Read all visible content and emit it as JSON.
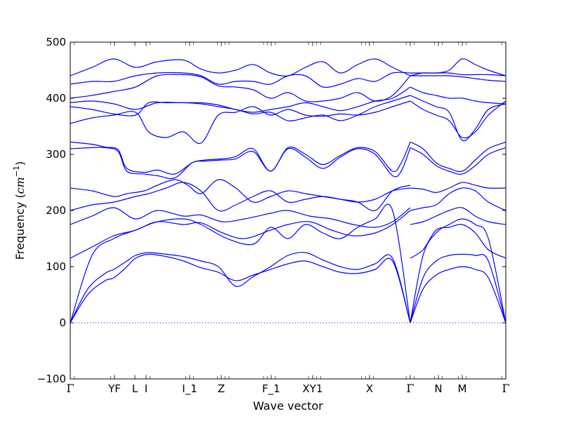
{
  "chart_data": {
    "type": "line",
    "title": "",
    "xlabel": "Wave vector",
    "ylabel": "Frequency (cm⁻¹)",
    "ylabel_parts": {
      "prefix": "Frequency (",
      "unit": "cm",
      "exponent": "−1",
      "suffix": ")"
    },
    "ylim": [
      -100,
      500
    ],
    "yticks": [
      -100,
      0,
      100,
      200,
      300,
      400,
      500
    ],
    "grid": false,
    "zero_line": true,
    "band_color": "#0000ff",
    "zero_line_color": "#0000ff",
    "xlim": [
      0,
      1
    ],
    "x_labels": [
      {
        "label": "Γ",
        "x": 0.0,
        "serif": true
      },
      {
        "label": "YF",
        "x": 0.1016,
        "serif": false
      },
      {
        "label": "L",
        "x": 0.1484,
        "serif": false
      },
      {
        "label": "I",
        "x": 0.1742,
        "serif": false
      },
      {
        "label": "I_1",
        "x": 0.2742,
        "serif": false
      },
      {
        "label": "Z",
        "x": 0.3468,
        "serif": false
      },
      {
        "label": "F_1",
        "x": 0.4613,
        "serif": false
      },
      {
        "label": "XY1",
        "x": 0.5565,
        "serif": false
      },
      {
        "label": "X",
        "x": 0.6871,
        "serif": false
      },
      {
        "label": "Γ",
        "x": 0.7806,
        "serif": true
      },
      {
        "label": "N",
        "x": 0.8452,
        "serif": false
      },
      {
        "label": "M",
        "x": 0.9,
        "serif": false
      },
      {
        "label": "Γ",
        "x": 1.0,
        "serif": true
      }
    ],
    "series": [
      {
        "x": [
          0,
          0.04,
          0.08,
          0.1,
          0.13,
          0.15,
          0.18,
          0.22,
          0.26,
          0.3,
          0.34,
          0.38,
          0.42,
          0.46,
          0.5,
          0.54,
          0.58,
          0.62,
          0.66,
          0.7,
          0.74,
          0.7806
        ],
        "values": [
          0,
          50,
          75,
          80,
          100,
          115,
          122,
          118,
          110,
          98,
          90,
          75,
          85,
          95,
          105,
          110,
          100,
          90,
          88,
          95,
          110,
          0
        ]
      },
      {
        "x": [
          0,
          0.04,
          0.08,
          0.1,
          0.13,
          0.15,
          0.18,
          0.22,
          0.26,
          0.3,
          0.34,
          0.38,
          0.42,
          0.46,
          0.5,
          0.54,
          0.58,
          0.62,
          0.66,
          0.7,
          0.74,
          0.7806
        ],
        "values": [
          0,
          60,
          88,
          95,
          110,
          120,
          125,
          122,
          118,
          110,
          100,
          65,
          82,
          100,
          120,
          125,
          112,
          100,
          95,
          105,
          115,
          0
        ]
      },
      {
        "x": [
          0,
          0.05,
          0.1,
          0.15,
          0.2,
          0.26,
          0.3,
          0.36,
          0.42,
          0.46,
          0.5,
          0.54,
          0.58,
          0.62,
          0.66,
          0.7,
          0.74,
          0.7806
        ],
        "values": [
          0,
          120,
          150,
          165,
          180,
          185,
          175,
          150,
          140,
          170,
          150,
          175,
          160,
          150,
          170,
          185,
          200,
          0
        ]
      },
      {
        "x": [
          0,
          0.05,
          0.1,
          0.15,
          0.2,
          0.26,
          0.3,
          0.35,
          0.4,
          0.46,
          0.5,
          0.55,
          0.6,
          0.65,
          0.7,
          0.74,
          0.7806
        ],
        "values": [
          115,
          135,
          155,
          165,
          180,
          175,
          178,
          160,
          150,
          165,
          175,
          180,
          165,
          155,
          160,
          175,
          200
        ]
      },
      {
        "x": [
          0,
          0.05,
          0.1,
          0.15,
          0.2,
          0.26,
          0.3,
          0.35,
          0.4,
          0.46,
          0.5,
          0.55,
          0.6,
          0.65,
          0.7,
          0.74,
          0.7806
        ],
        "values": [
          175,
          190,
          205,
          185,
          200,
          190,
          192,
          180,
          185,
          195,
          200,
          190,
          185,
          175,
          170,
          180,
          205
        ]
      },
      {
        "x": [
          0,
          0.05,
          0.1,
          0.15,
          0.18,
          0.22,
          0.26,
          0.3,
          0.34,
          0.38,
          0.42,
          0.46,
          0.5,
          0.54,
          0.58,
          0.62,
          0.66,
          0.7,
          0.74,
          0.7806
        ],
        "values": [
          200,
          210,
          215,
          225,
          230,
          240,
          250,
          235,
          200,
          210,
          225,
          235,
          215,
          220,
          225,
          220,
          215,
          220,
          235,
          240
        ]
      },
      {
        "x": [
          0,
          0.05,
          0.1,
          0.13,
          0.17,
          0.2,
          0.24,
          0.27,
          0.3,
          0.34,
          0.38,
          0.42,
          0.46,
          0.5,
          0.54,
          0.58,
          0.62,
          0.66,
          0.7,
          0.74,
          0.7806
        ],
        "values": [
          240,
          235,
          225,
          230,
          235,
          245,
          255,
          245,
          230,
          255,
          240,
          215,
          225,
          235,
          230,
          225,
          220,
          215,
          200,
          235,
          245
        ]
      },
      {
        "x": [
          0,
          0.05,
          0.08,
          0.11,
          0.13,
          0.17,
          0.2,
          0.24,
          0.28,
          0.31,
          0.35,
          0.38,
          0.42,
          0.46,
          0.5,
          0.54,
          0.58,
          0.62,
          0.66,
          0.7,
          0.74,
          0.76,
          0.7806
        ],
        "values": [
          310,
          312,
          312,
          305,
          270,
          265,
          262,
          258,
          285,
          288,
          290,
          292,
          305,
          270,
          310,
          295,
          275,
          295,
          310,
          300,
          262,
          270,
          312
        ]
      },
      {
        "x": [
          0,
          0.05,
          0.08,
          0.11,
          0.13,
          0.17,
          0.2,
          0.24,
          0.28,
          0.31,
          0.35,
          0.38,
          0.42,
          0.46,
          0.5,
          0.54,
          0.58,
          0.62,
          0.66,
          0.7,
          0.74,
          0.76,
          0.7806
        ],
        "values": [
          322,
          318,
          313,
          308,
          275,
          268,
          272,
          265,
          285,
          290,
          292,
          296,
          310,
          270,
          312,
          300,
          282,
          298,
          312,
          305,
          270,
          285,
          322
        ]
      },
      {
        "x": [
          0,
          0.05,
          0.1,
          0.15,
          0.18,
          0.22,
          0.26,
          0.3,
          0.34,
          0.38,
          0.42,
          0.46,
          0.5,
          0.54,
          0.58,
          0.62,
          0.66,
          0.7,
          0.74,
          0.7806
        ],
        "values": [
          355,
          365,
          370,
          375,
          340,
          330,
          340,
          320,
          370,
          375,
          385,
          370,
          380,
          370,
          368,
          372,
          370,
          375,
          385,
          395
        ]
      },
      {
        "x": [
          0,
          0.05,
          0.1,
          0.15,
          0.18,
          0.22,
          0.26,
          0.3,
          0.34,
          0.38,
          0.42,
          0.46,
          0.5,
          0.54,
          0.58,
          0.62,
          0.66,
          0.7,
          0.74,
          0.7806
        ],
        "values": [
          385,
          380,
          372,
          370,
          392,
          392,
          392,
          390,
          385,
          380,
          372,
          375,
          360,
          365,
          370,
          360,
          370,
          385,
          395,
          405
        ]
      },
      {
        "x": [
          0,
          0.05,
          0.1,
          0.15,
          0.2,
          0.26,
          0.3,
          0.34,
          0.38,
          0.42,
          0.46,
          0.5,
          0.54,
          0.58,
          0.62,
          0.66,
          0.7,
          0.74,
          0.7806
        ],
        "values": [
          392,
          395,
          390,
          380,
          392,
          392,
          392,
          388,
          380,
          375,
          380,
          385,
          392,
          385,
          378,
          385,
          395,
          400,
          420
        ]
      },
      {
        "x": [
          0,
          0.05,
          0.1,
          0.15,
          0.2,
          0.26,
          0.3,
          0.34,
          0.38,
          0.42,
          0.46,
          0.5,
          0.54,
          0.58,
          0.62,
          0.66,
          0.7,
          0.74,
          0.7806
        ],
        "values": [
          400,
          405,
          412,
          420,
          440,
          442,
          438,
          422,
          420,
          415,
          400,
          410,
          395,
          395,
          400,
          410,
          395,
          405,
          440
        ]
      },
      {
        "x": [
          0,
          0.05,
          0.1,
          0.15,
          0.2,
          0.26,
          0.3,
          0.34,
          0.38,
          0.42,
          0.46,
          0.5,
          0.54,
          0.58,
          0.62,
          0.66,
          0.7,
          0.74,
          0.7806
        ],
        "values": [
          425,
          430,
          430,
          440,
          445,
          445,
          440,
          425,
          430,
          430,
          425,
          440,
          440,
          420,
          425,
          435,
          430,
          445,
          445
        ]
      },
      {
        "x": [
          0,
          0.05,
          0.1,
          0.15,
          0.2,
          0.26,
          0.3,
          0.34,
          0.38,
          0.42,
          0.46,
          0.5,
          0.54,
          0.58,
          0.62,
          0.66,
          0.7,
          0.74,
          0.7806
        ],
        "values": [
          440,
          455,
          470,
          455,
          465,
          468,
          452,
          445,
          450,
          460,
          445,
          440,
          455,
          465,
          445,
          460,
          470,
          455,
          440
        ]
      },
      {
        "x": [
          0.7806,
          0.81,
          0.84,
          0.87,
          0.9,
          0.93,
          0.96,
          1.0
        ],
        "values": [
          0,
          60,
          85,
          95,
          100,
          95,
          80,
          0
        ]
      },
      {
        "x": [
          0.7806,
          0.81,
          0.84,
          0.87,
          0.9,
          0.93,
          0.96,
          1.0
        ],
        "values": [
          0,
          80,
          110,
          120,
          122,
          120,
          110,
          0
        ]
      },
      {
        "x": [
          0.7806,
          0.81,
          0.84,
          0.87,
          0.9,
          0.93,
          0.96,
          1.0
        ],
        "values": [
          0,
          120,
          160,
          175,
          185,
          175,
          150,
          0
        ]
      },
      {
        "x": [
          0.7806,
          0.81,
          0.84,
          0.87,
          0.9,
          0.93,
          0.96,
          1.0
        ],
        "values": [
          115,
          130,
          165,
          170,
          175,
          160,
          130,
          115
        ]
      },
      {
        "x": [
          0.7806,
          0.81,
          0.84,
          0.87,
          0.9,
          0.93,
          0.96,
          1.0
        ],
        "values": [
          175,
          180,
          190,
          200,
          205,
          190,
          180,
          175
        ]
      },
      {
        "x": [
          0.7806,
          0.81,
          0.84,
          0.87,
          0.9,
          0.93,
          0.96,
          1.0
        ],
        "values": [
          200,
          205,
          210,
          230,
          240,
          235,
          215,
          200
        ]
      },
      {
        "x": [
          0.7806,
          0.81,
          0.84,
          0.87,
          0.9,
          0.93,
          0.96,
          1.0
        ],
        "values": [
          240,
          238,
          232,
          240,
          250,
          245,
          240,
          240
        ]
      },
      {
        "x": [
          0.7806,
          0.81,
          0.84,
          0.87,
          0.9,
          0.93,
          0.96,
          1.0
        ],
        "values": [
          312,
          300,
          280,
          270,
          265,
          280,
          300,
          312
        ]
      },
      {
        "x": [
          0.7806,
          0.81,
          0.84,
          0.87,
          0.9,
          0.93,
          0.96,
          1.0
        ],
        "values": [
          322,
          310,
          285,
          275,
          270,
          290,
          310,
          322
        ]
      },
      {
        "x": [
          0.7806,
          0.81,
          0.84,
          0.87,
          0.9,
          0.93,
          0.96,
          1.0
        ],
        "values": [
          395,
          380,
          370,
          360,
          330,
          340,
          370,
          395
        ]
      },
      {
        "x": [
          0.7806,
          0.81,
          0.84,
          0.87,
          0.9,
          0.93,
          0.96,
          1.0
        ],
        "values": [
          405,
          395,
          385,
          375,
          325,
          345,
          380,
          390
        ]
      },
      {
        "x": [
          0.7806,
          0.81,
          0.84,
          0.87,
          0.9,
          0.93,
          0.96,
          1.0
        ],
        "values": [
          420,
          410,
          405,
          400,
          400,
          395,
          392,
          390
        ]
      },
      {
        "x": [
          0.7806,
          0.81,
          0.84,
          0.87,
          0.9,
          0.93,
          0.96,
          1.0
        ],
        "values": [
          440,
          440,
          440,
          440,
          438,
          435,
          432,
          430
        ]
      },
      {
        "x": [
          0.7806,
          0.81,
          0.84,
          0.87,
          0.9,
          0.93,
          0.96,
          1.0
        ],
        "values": [
          445,
          445,
          445,
          445,
          442,
          442,
          442,
          440
        ]
      },
      {
        "x": [
          0.7806,
          0.81,
          0.84,
          0.87,
          0.9,
          0.93,
          0.96,
          1.0
        ],
        "values": [
          440,
          445,
          445,
          450,
          470,
          460,
          450,
          440
        ]
      }
    ]
  }
}
